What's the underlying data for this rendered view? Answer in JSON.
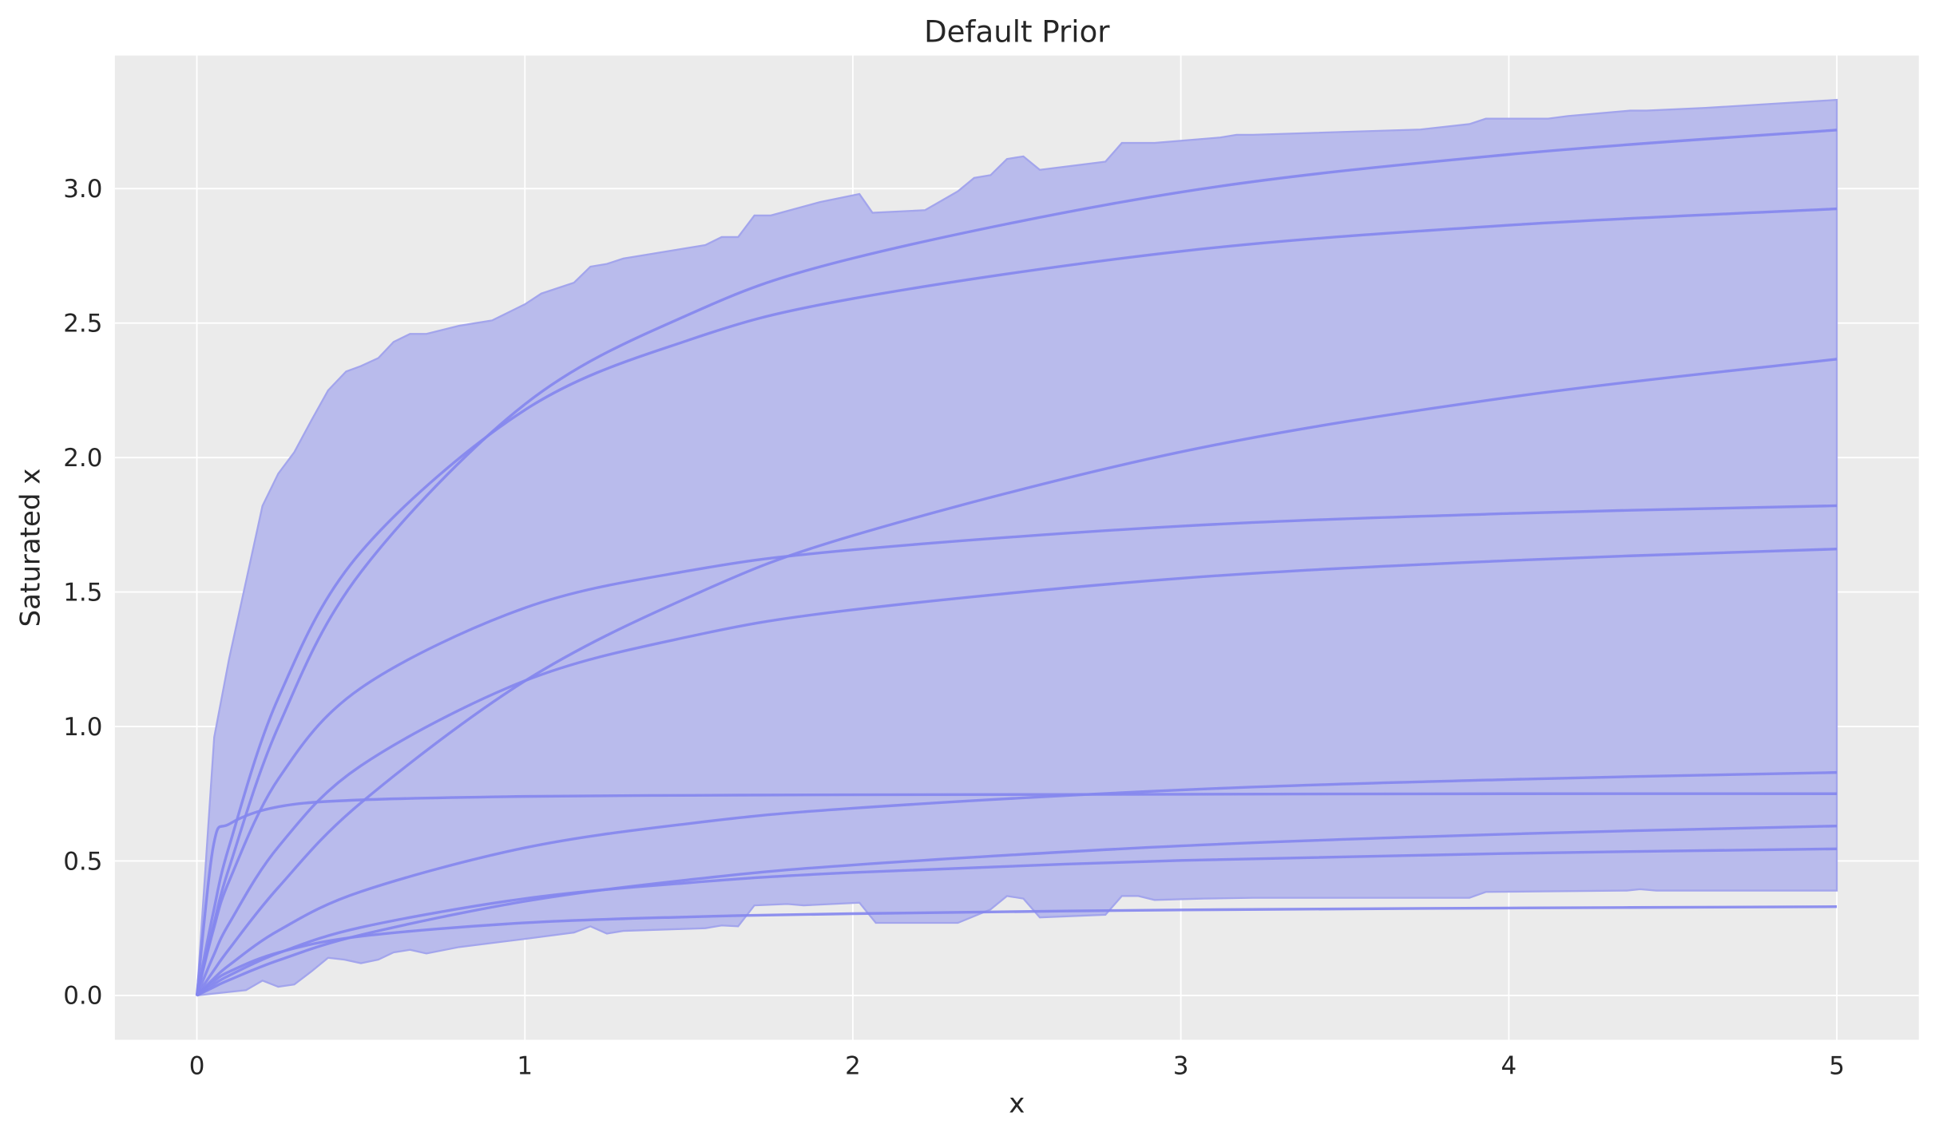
{
  "chart_data": {
    "type": "line",
    "title": "Default Prior",
    "xlabel": "x",
    "ylabel": "Saturated x",
    "xlim": [
      -0.25,
      5.25
    ],
    "ylim": [
      -0.165,
      3.495
    ],
    "xticks": [
      "0",
      "1",
      "2",
      "3",
      "4",
      "5"
    ],
    "yticks": [
      "0.0",
      "0.5",
      "1.0",
      "1.5",
      "2.0",
      "2.5",
      "3.0"
    ],
    "grid": true,
    "colors": {
      "background": "#ebebeb",
      "grid": "#ffffff",
      "band_fill": "#b9bbec",
      "band_edge": "#a3a5ec",
      "line": "#8486ee"
    },
    "band": {
      "upper": [
        [
          0,
          0
        ],
        [
          0.053,
          0.96
        ],
        [
          0.098,
          1.25
        ],
        [
          0.2,
          1.82
        ],
        [
          0.248,
          1.94
        ],
        [
          0.297,
          2.02
        ],
        [
          0.35,
          2.14
        ],
        [
          0.4,
          2.25
        ],
        [
          0.455,
          2.32
        ],
        [
          0.5,
          2.34
        ],
        [
          0.553,
          2.37
        ],
        [
          0.6,
          2.43
        ],
        [
          0.65,
          2.46
        ],
        [
          0.7,
          2.46
        ],
        [
          0.8,
          2.49
        ],
        [
          0.9,
          2.51
        ],
        [
          1.0,
          2.57
        ],
        [
          1.05,
          2.61
        ],
        [
          1.15,
          2.65
        ],
        [
          1.2,
          2.71
        ],
        [
          1.25,
          2.72
        ],
        [
          1.3,
          2.74
        ],
        [
          1.55,
          2.79
        ],
        [
          1.6,
          2.82
        ],
        [
          1.65,
          2.82
        ],
        [
          1.7,
          2.9
        ],
        [
          1.75,
          2.9
        ],
        [
          1.9,
          2.95
        ],
        [
          2.02,
          2.98
        ],
        [
          2.06,
          2.91
        ],
        [
          2.22,
          2.92
        ],
        [
          2.32,
          2.99
        ],
        [
          2.37,
          3.04
        ],
        [
          2.42,
          3.05
        ],
        [
          2.47,
          3.11
        ],
        [
          2.52,
          3.12
        ],
        [
          2.57,
          3.07
        ],
        [
          2.77,
          3.1
        ],
        [
          2.82,
          3.17
        ],
        [
          2.87,
          3.17
        ],
        [
          2.92,
          3.17
        ],
        [
          3.12,
          3.19
        ],
        [
          3.17,
          3.2
        ],
        [
          3.22,
          3.2
        ],
        [
          3.73,
          3.22
        ],
        [
          3.88,
          3.24
        ],
        [
          3.93,
          3.26
        ],
        [
          4.12,
          3.26
        ],
        [
          4.18,
          3.27
        ],
        [
          4.37,
          3.29
        ],
        [
          4.42,
          3.29
        ],
        [
          4.6,
          3.3
        ],
        [
          5.0,
          3.33
        ]
      ],
      "lower": [
        [
          0,
          0
        ],
        [
          0.15,
          0.02
        ],
        [
          0.2,
          0.055
        ],
        [
          0.248,
          0.032
        ],
        [
          0.297,
          0.041
        ],
        [
          0.35,
          0.09
        ],
        [
          0.4,
          0.14
        ],
        [
          0.45,
          0.133
        ],
        [
          0.5,
          0.12
        ],
        [
          0.553,
          0.133
        ],
        [
          0.6,
          0.16
        ],
        [
          0.65,
          0.17
        ],
        [
          0.7,
          0.156
        ],
        [
          0.8,
          0.18
        ],
        [
          1.0,
          0.21
        ],
        [
          1.15,
          0.234
        ],
        [
          1.2,
          0.257
        ],
        [
          1.25,
          0.23
        ],
        [
          1.3,
          0.24
        ],
        [
          1.55,
          0.25
        ],
        [
          1.6,
          0.26
        ],
        [
          1.65,
          0.257
        ],
        [
          1.7,
          0.335
        ],
        [
          1.8,
          0.34
        ],
        [
          1.85,
          0.335
        ],
        [
          2.02,
          0.345
        ],
        [
          2.07,
          0.27
        ],
        [
          2.32,
          0.27
        ],
        [
          2.42,
          0.32
        ],
        [
          2.47,
          0.37
        ],
        [
          2.52,
          0.36
        ],
        [
          2.57,
          0.29
        ],
        [
          2.77,
          0.3
        ],
        [
          2.82,
          0.37
        ],
        [
          2.87,
          0.37
        ],
        [
          2.92,
          0.355
        ],
        [
          3.07,
          0.36
        ],
        [
          3.22,
          0.363
        ],
        [
          3.88,
          0.363
        ],
        [
          3.93,
          0.385
        ],
        [
          4.36,
          0.39
        ],
        [
          4.4,
          0.395
        ],
        [
          4.45,
          0.39
        ],
        [
          5.0,
          0.39
        ]
      ]
    },
    "x": [
      0,
      0.05,
      0.1,
      0.25,
      0.5,
      1,
      1.5,
      2,
      3,
      4,
      5
    ],
    "series": [
      {
        "values": [
          0,
          0.258,
          0.481,
          1.004,
          1.574,
          2.198,
          2.532,
          2.741,
          2.987,
          3.127,
          3.218
        ]
      },
      {
        "values": [
          0,
          0.308,
          0.561,
          1.111,
          1.649,
          2.177,
          2.437,
          2.591,
          2.767,
          2.864,
          2.925
        ]
      },
      {
        "values": [
          0,
          0.09,
          0.175,
          0.404,
          0.716,
          1.169,
          1.481,
          1.71,
          2.021,
          2.224,
          2.366
        ]
      },
      {
        "values": [
          0,
          0.242,
          0.43,
          0.808,
          1.143,
          1.441,
          1.579,
          1.657,
          1.745,
          1.792,
          1.821
        ]
      },
      {
        "values": [
          0,
          0.146,
          0.271,
          0.555,
          0.854,
          1.17,
          1.334,
          1.434,
          1.551,
          1.617,
          1.66
        ]
      },
      {
        "values": [
          0,
          0.061,
          0.114,
          0.242,
          0.386,
          0.549,
          0.639,
          0.696,
          0.764,
          0.803,
          0.829
        ]
      },
      {
        "values": [
          0,
          0.554,
          0.638,
          0.702,
          0.727,
          0.74,
          0.744,
          0.746,
          0.748,
          0.75,
          0.75
        ]
      },
      {
        "values": [
          0,
          0.03,
          0.058,
          0.131,
          0.225,
          0.35,
          0.43,
          0.485,
          0.556,
          0.6,
          0.63
        ]
      },
      {
        "values": [
          0,
          0.04,
          0.075,
          0.158,
          0.253,
          0.36,
          0.419,
          0.457,
          0.502,
          0.528,
          0.545
        ]
      },
      {
        "values": [
          0,
          0.051,
          0.089,
          0.16,
          0.22,
          0.27,
          0.292,
          0.304,
          0.318,
          0.325,
          0.33
        ]
      }
    ]
  }
}
